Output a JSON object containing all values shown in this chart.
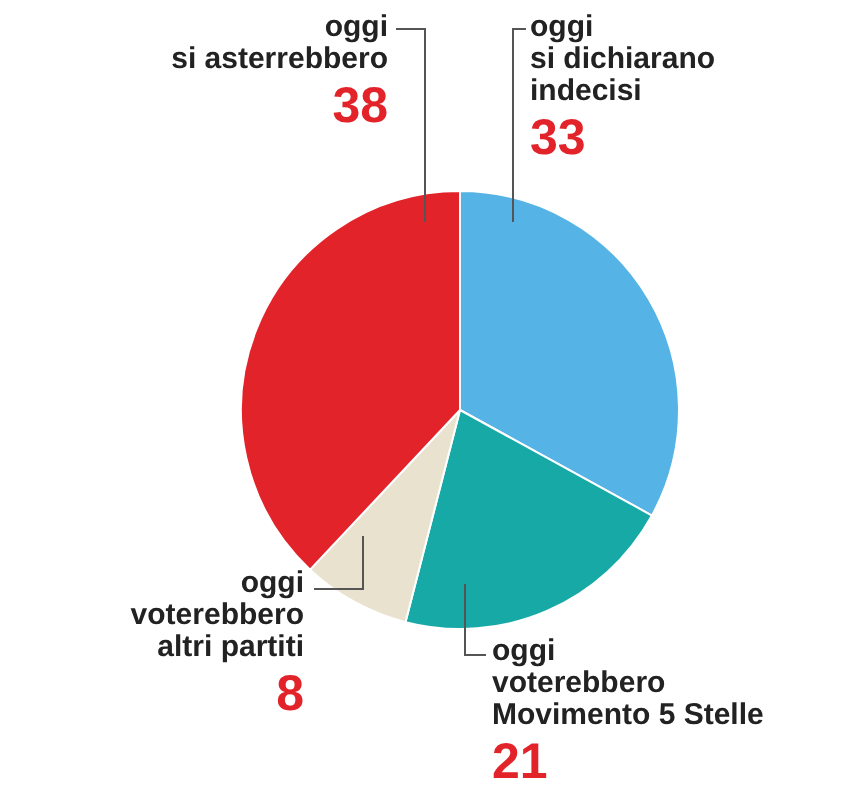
{
  "chart_data": {
    "type": "pie",
    "categories": [
      "oggi\nsi dichiarano\nindecisi",
      "oggi\nvoterebbero\nMovimento 5 Stelle",
      "oggi\nvoterebbero\naltri partiti",
      "oggi\nsi asterrebbero"
    ],
    "values": [
      33,
      21,
      8,
      38
    ],
    "colors": [
      "#55b3e6",
      "#17a9a6",
      "#e9e2cf",
      "#e3232a"
    ],
    "data_labels": true,
    "legend": false
  }
}
